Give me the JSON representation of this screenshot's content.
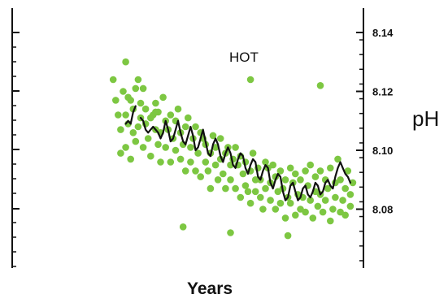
{
  "chart_data": {
    "type": "scatter",
    "title": "",
    "xlabel": "Years",
    "ylabel": "pH",
    "annotation": "HOT",
    "ylim": [
      8.06,
      8.14
    ],
    "xlim": [
      0,
      100
    ],
    "yticks": [
      8.08,
      8.1,
      8.12,
      8.14
    ],
    "ytick_labels": [
      "8.08",
      "8.10",
      "8.12",
      "8.14"
    ],
    "grid": false,
    "colors": {
      "points": "#7dc742",
      "line": "#111111",
      "axes": "#111111"
    },
    "series": [
      {
        "type": "scatter",
        "x": [
          3,
          4,
          5,
          6,
          6,
          7,
          8,
          8,
          9,
          9,
          10,
          10,
          11,
          11,
          12,
          12,
          13,
          14,
          14,
          15,
          15,
          16,
          16,
          17,
          18,
          18,
          19,
          20,
          20,
          21,
          21,
          22,
          22,
          23,
          24,
          24,
          25,
          26,
          26,
          27,
          28,
          28,
          29,
          30,
          30,
          31,
          32,
          32,
          33,
          34,
          34,
          35,
          36,
          36,
          37,
          38,
          38,
          39,
          40,
          40,
          41,
          42,
          42,
          43,
          44,
          44,
          45,
          46,
          46,
          47,
          48,
          48,
          49,
          50,
          50,
          51,
          52,
          52,
          53,
          54,
          54,
          55,
          56,
          56,
          57,
          58,
          58,
          59,
          60,
          60,
          61,
          62,
          62,
          63,
          64,
          64,
          65,
          66,
          66,
          67,
          68,
          68,
          69,
          70,
          70,
          71,
          72,
          72,
          73,
          74,
          74,
          75,
          76,
          76,
          77,
          78,
          78,
          79,
          80,
          80,
          81,
          82,
          82,
          83,
          84,
          84,
          85,
          86,
          86,
          87,
          88,
          88,
          89,
          90,
          90,
          91,
          92,
          92,
          93,
          94,
          94,
          95,
          96,
          96,
          97,
          98,
          98,
          99,
          8,
          58,
          86,
          13,
          31,
          73,
          50,
          20
        ],
        "y": [
          8.124,
          8.117,
          8.112,
          8.107,
          8.099,
          8.12,
          8.112,
          8.101,
          8.118,
          8.109,
          8.097,
          8.117,
          8.106,
          8.114,
          8.121,
          8.103,
          8.108,
          8.111,
          8.116,
          8.101,
          8.121,
          8.109,
          8.114,
          8.104,
          8.111,
          8.098,
          8.112,
          8.107,
          8.116,
          8.102,
          8.113,
          8.106,
          8.096,
          8.118,
          8.11,
          8.101,
          8.107,
          8.096,
          8.112,
          8.104,
          8.11,
          8.1,
          8.114,
          8.097,
          8.106,
          8.102,
          8.108,
          8.093,
          8.111,
          8.101,
          8.096,
          8.104,
          8.093,
          8.108,
          8.099,
          8.106,
          8.091,
          8.104,
          8.096,
          8.102,
          8.093,
          8.099,
          8.087,
          8.105,
          8.095,
          8.101,
          8.09,
          8.097,
          8.104,
          8.092,
          8.099,
          8.087,
          8.101,
          8.095,
          8.09,
          8.097,
          8.087,
          8.101,
          8.095,
          8.084,
          8.098,
          8.092,
          8.088,
          8.096,
          8.086,
          8.093,
          8.082,
          8.099,
          8.09,
          8.086,
          8.094,
          8.084,
          8.09,
          8.08,
          8.096,
          8.087,
          8.094,
          8.083,
          8.089,
          8.095,
          8.08,
          8.091,
          8.086,
          8.082,
          8.093,
          8.087,
          8.077,
          8.09,
          8.084,
          8.094,
          8.082,
          8.089,
          8.078,
          8.092,
          8.085,
          8.08,
          8.09,
          8.084,
          8.093,
          8.079,
          8.088,
          8.083,
          8.095,
          8.077,
          8.091,
          8.086,
          8.081,
          8.093,
          8.085,
          8.079,
          8.09,
          8.083,
          8.087,
          8.076,
          8.094,
          8.08,
          8.089,
          8.084,
          8.097,
          8.079,
          8.09,
          8.083,
          8.087,
          8.078,
          8.093,
          8.085,
          8.081,
          8.089,
          8.13,
          8.124,
          8.122,
          8.124,
          8.074,
          8.071,
          8.072,
          8.113
        ]
      },
      {
        "type": "line",
        "x": [
          8,
          9,
          10,
          11,
          12,
          14,
          15,
          16,
          17,
          18,
          19,
          20,
          21,
          22,
          23,
          24,
          25,
          26,
          27,
          28,
          29,
          30,
          31,
          32,
          33,
          34,
          35,
          36,
          37,
          38,
          39,
          40,
          41,
          42,
          43,
          44,
          45,
          46,
          47,
          48,
          49,
          50,
          51,
          52,
          53,
          54,
          55,
          56,
          57,
          58,
          59,
          60,
          61,
          62,
          63,
          64,
          65,
          66,
          67,
          68,
          69,
          70,
          71,
          72,
          73,
          74,
          75,
          76,
          77,
          78,
          79,
          80,
          81,
          82,
          83,
          84,
          85,
          86,
          87,
          88,
          89,
          90,
          91,
          92,
          93,
          94,
          95,
          96,
          97,
          98
        ],
        "y": [
          8.109,
          8.11,
          8.109,
          8.113,
          8.115,
          8.111,
          8.11,
          8.107,
          8.106,
          8.107,
          8.108,
          8.107,
          8.106,
          8.104,
          8.106,
          8.11,
          8.107,
          8.103,
          8.104,
          8.107,
          8.11,
          8.106,
          8.103,
          8.102,
          8.105,
          8.108,
          8.105,
          8.1,
          8.101,
          8.104,
          8.107,
          8.103,
          8.099,
          8.098,
          8.102,
          8.104,
          8.102,
          8.098,
          8.096,
          8.099,
          8.101,
          8.099,
          8.095,
          8.094,
          8.097,
          8.099,
          8.098,
          8.094,
          8.092,
          8.095,
          8.097,
          8.096,
          8.091,
          8.09,
          8.093,
          8.095,
          8.094,
          8.089,
          8.087,
          8.09,
          8.092,
          8.091,
          8.086,
          8.083,
          8.084,
          8.088,
          8.089,
          8.086,
          8.083,
          8.084,
          8.087,
          8.088,
          8.085,
          8.084,
          8.086,
          8.089,
          8.088,
          8.085,
          8.086,
          8.089,
          8.09,
          8.088,
          8.087,
          8.091,
          8.094,
          8.096,
          8.094,
          8.092,
          8.091,
          8.089
        ]
      }
    ]
  }
}
